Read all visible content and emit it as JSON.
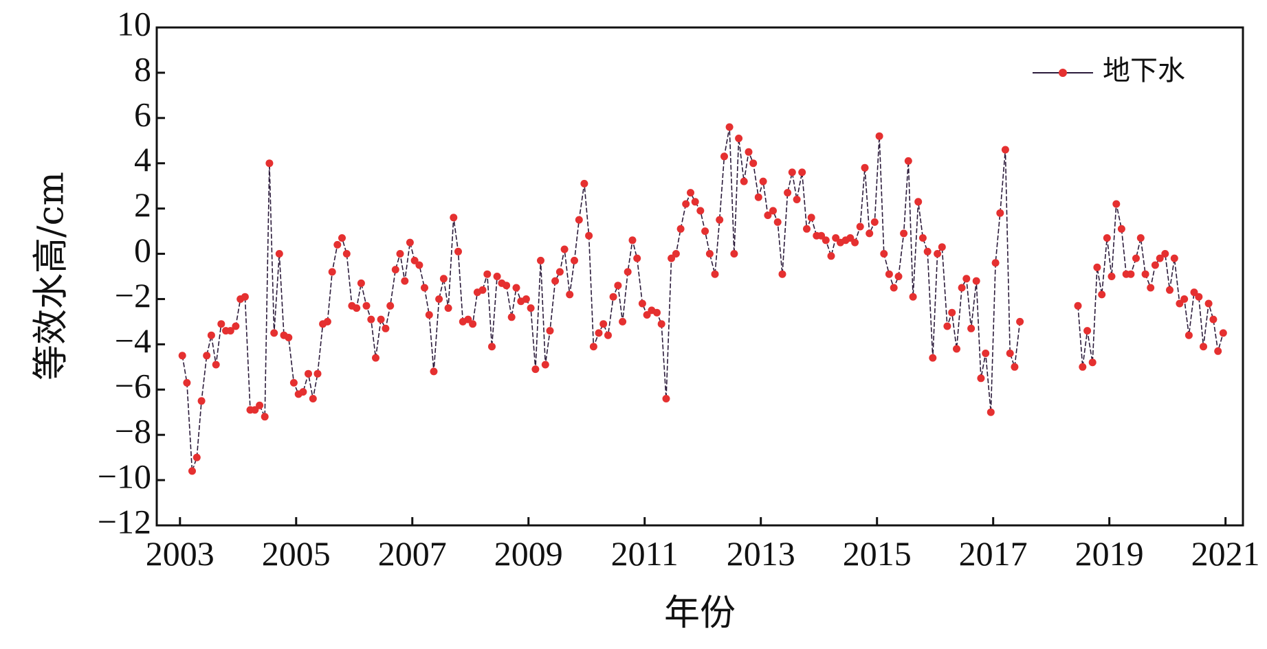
{
  "chart_data": {
    "type": "line",
    "xlabel": "年份",
    "ylabel": "等效水高/cm",
    "xlim": [
      2002.6,
      2021.3
    ],
    "ylim": [
      -12,
      10
    ],
    "x_ticks": [
      2003,
      2005,
      2007,
      2009,
      2011,
      2013,
      2015,
      2017,
      2019,
      2021
    ],
    "x_tick_labels": [
      "2003",
      "2005",
      "2007",
      "2009",
      "2011",
      "2013",
      "2015",
      "2017",
      "2019",
      "2021"
    ],
    "y_ticks": [
      -12,
      -10,
      -8,
      -6,
      -4,
      -2,
      0,
      2,
      4,
      6,
      8,
      10
    ],
    "y_tick_labels": [
      "−12",
      "−10",
      "−8",
      "−6",
      "−4",
      "−2",
      "0",
      "2",
      "4",
      "6",
      "8",
      "10"
    ],
    "legend_position": "top-right",
    "grid": false,
    "colors": {
      "line": "#2a1a3a",
      "marker": "#e53030",
      "axis": "#111111"
    },
    "series": [
      {
        "name": "地下水",
        "segments": [
          [
            [
              2003.04,
              -4.5
            ],
            [
              2003.12,
              -5.7
            ],
            [
              2003.21,
              -9.6
            ],
            [
              2003.29,
              -9.0
            ],
            [
              2003.37,
              -6.5
            ],
            [
              2003.46,
              -4.5
            ],
            [
              2003.54,
              -3.6
            ],
            [
              2003.62,
              -4.9
            ],
            [
              2003.71,
              -3.1
            ],
            [
              2003.79,
              -3.4
            ],
            [
              2003.87,
              -3.4
            ],
            [
              2003.96,
              -3.2
            ],
            [
              2004.04,
              -2.0
            ],
            [
              2004.12,
              -1.9
            ],
            [
              2004.21,
              -6.9
            ],
            [
              2004.29,
              -6.9
            ],
            [
              2004.37,
              -6.7
            ],
            [
              2004.46,
              -7.2
            ],
            [
              2004.54,
              4.0
            ],
            [
              2004.62,
              -3.5
            ],
            [
              2004.71,
              0.0
            ],
            [
              2004.79,
              -3.6
            ],
            [
              2004.87,
              -3.7
            ],
            [
              2004.96,
              -5.7
            ],
            [
              2005.04,
              -6.2
            ],
            [
              2005.12,
              -6.1
            ],
            [
              2005.21,
              -5.3
            ],
            [
              2005.29,
              -6.4
            ],
            [
              2005.37,
              -5.3
            ],
            [
              2005.46,
              -3.1
            ],
            [
              2005.54,
              -3.0
            ],
            [
              2005.62,
              -0.8
            ],
            [
              2005.71,
              0.4
            ],
            [
              2005.79,
              0.7
            ],
            [
              2005.87,
              0.0
            ],
            [
              2005.96,
              -2.3
            ],
            [
              2006.04,
              -2.4
            ],
            [
              2006.12,
              -1.3
            ],
            [
              2006.21,
              -2.3
            ],
            [
              2006.29,
              -2.9
            ],
            [
              2006.37,
              -4.6
            ],
            [
              2006.46,
              -2.9
            ],
            [
              2006.54,
              -3.3
            ],
            [
              2006.62,
              -2.3
            ],
            [
              2006.71,
              -0.7
            ],
            [
              2006.79,
              0.0
            ],
            [
              2006.87,
              -1.2
            ],
            [
              2006.96,
              0.5
            ],
            [
              2007.04,
              -0.3
            ],
            [
              2007.12,
              -0.5
            ],
            [
              2007.21,
              -1.5
            ],
            [
              2007.29,
              -2.7
            ],
            [
              2007.37,
              -5.2
            ],
            [
              2007.46,
              -2.0
            ],
            [
              2007.54,
              -1.1
            ],
            [
              2007.62,
              -2.4
            ],
            [
              2007.71,
              1.6
            ],
            [
              2007.79,
              0.1
            ],
            [
              2007.87,
              -3.0
            ],
            [
              2007.96,
              -2.9
            ],
            [
              2008.04,
              -3.1
            ],
            [
              2008.12,
              -1.7
            ],
            [
              2008.21,
              -1.6
            ],
            [
              2008.29,
              -0.9
            ],
            [
              2008.37,
              -4.1
            ],
            [
              2008.46,
              -1.0
            ],
            [
              2008.54,
              -1.3
            ],
            [
              2008.62,
              -1.4
            ],
            [
              2008.71,
              -2.8
            ],
            [
              2008.79,
              -1.5
            ],
            [
              2008.87,
              -2.1
            ],
            [
              2008.96,
              -2.0
            ],
            [
              2009.04,
              -2.4
            ],
            [
              2009.12,
              -5.1
            ],
            [
              2009.21,
              -0.3
            ],
            [
              2009.29,
              -4.9
            ],
            [
              2009.37,
              -3.4
            ],
            [
              2009.46,
              -1.2
            ],
            [
              2009.54,
              -0.8
            ],
            [
              2009.62,
              0.2
            ],
            [
              2009.71,
              -1.8
            ],
            [
              2009.79,
              -0.3
            ],
            [
              2009.87,
              1.5
            ],
            [
              2009.96,
              3.1
            ],
            [
              2010.04,
              0.8
            ],
            [
              2010.12,
              -4.1
            ],
            [
              2010.21,
              -3.5
            ],
            [
              2010.29,
              -3.1
            ],
            [
              2010.37,
              -3.6
            ],
            [
              2010.46,
              -1.9
            ],
            [
              2010.54,
              -1.4
            ],
            [
              2010.62,
              -3.0
            ],
            [
              2010.71,
              -0.8
            ],
            [
              2010.79,
              0.6
            ],
            [
              2010.87,
              -0.2
            ],
            [
              2010.96,
              -2.2
            ],
            [
              2011.04,
              -2.7
            ],
            [
              2011.12,
              -2.5
            ],
            [
              2011.21,
              -2.6
            ],
            [
              2011.29,
              -3.1
            ],
            [
              2011.37,
              -6.4
            ],
            [
              2011.46,
              -0.2
            ],
            [
              2011.54,
              0.0
            ],
            [
              2011.62,
              1.1
            ],
            [
              2011.71,
              2.2
            ],
            [
              2011.79,
              2.7
            ],
            [
              2011.87,
              2.3
            ],
            [
              2011.96,
              1.9
            ],
            [
              2012.04,
              1.0
            ],
            [
              2012.12,
              0.0
            ],
            [
              2012.21,
              -0.9
            ],
            [
              2012.29,
              1.5
            ],
            [
              2012.37,
              4.3
            ],
            [
              2012.46,
              5.6
            ],
            [
              2012.54,
              0.0
            ],
            [
              2012.62,
              5.1
            ],
            [
              2012.71,
              3.2
            ],
            [
              2012.79,
              4.5
            ],
            [
              2012.87,
              4.0
            ],
            [
              2012.96,
              2.5
            ],
            [
              2013.04,
              3.2
            ],
            [
              2013.12,
              1.7
            ],
            [
              2013.21,
              1.9
            ],
            [
              2013.29,
              1.4
            ],
            [
              2013.37,
              -0.9
            ],
            [
              2013.46,
              2.7
            ],
            [
              2013.54,
              3.6
            ],
            [
              2013.62,
              2.4
            ],
            [
              2013.71,
              3.6
            ],
            [
              2013.79,
              1.1
            ],
            [
              2013.87,
              1.6
            ],
            [
              2013.96,
              0.8
            ],
            [
              2014.04,
              0.8
            ],
            [
              2014.12,
              0.6
            ],
            [
              2014.21,
              -0.1
            ],
            [
              2014.29,
              0.7
            ],
            [
              2014.37,
              0.5
            ],
            [
              2014.46,
              0.6
            ],
            [
              2014.54,
              0.7
            ],
            [
              2014.62,
              0.5
            ],
            [
              2014.71,
              1.2
            ],
            [
              2014.79,
              3.8
            ],
            [
              2014.87,
              0.9
            ],
            [
              2014.96,
              1.4
            ],
            [
              2015.04,
              5.2
            ],
            [
              2015.12,
              0.0
            ],
            [
              2015.21,
              -0.9
            ],
            [
              2015.29,
              -1.5
            ],
            [
              2015.37,
              -1.0
            ],
            [
              2015.46,
              0.9
            ],
            [
              2015.54,
              4.1
            ],
            [
              2015.62,
              -1.9
            ],
            [
              2015.71,
              2.3
            ],
            [
              2015.79,
              0.7
            ],
            [
              2015.87,
              0.1
            ],
            [
              2015.96,
              -4.6
            ],
            [
              2016.04,
              0.0
            ],
            [
              2016.12,
              0.3
            ],
            [
              2016.21,
              -3.2
            ],
            [
              2016.29,
              -2.6
            ],
            [
              2016.37,
              -4.2
            ],
            [
              2016.46,
              -1.5
            ],
            [
              2016.54,
              -1.1
            ],
            [
              2016.62,
              -3.3
            ],
            [
              2016.71,
              -1.2
            ],
            [
              2016.79,
              -5.5
            ],
            [
              2016.87,
              -4.4
            ],
            [
              2016.96,
              -7.0
            ],
            [
              2017.04,
              -0.4
            ],
            [
              2017.12,
              1.8
            ],
            [
              2017.21,
              4.6
            ],
            [
              2017.29,
              -4.4
            ],
            [
              2017.37,
              -5.0
            ],
            [
              2017.46,
              -3.0
            ]
          ],
          [
            [
              2018.46,
              -2.3
            ],
            [
              2018.54,
              -5.0
            ],
            [
              2018.62,
              -3.4
            ],
            [
              2018.71,
              -4.8
            ],
            [
              2018.79,
              -0.6
            ],
            [
              2018.87,
              -1.8
            ],
            [
              2018.96,
              0.7
            ],
            [
              2019.04,
              -1.0
            ],
            [
              2019.12,
              2.2
            ],
            [
              2019.21,
              1.1
            ],
            [
              2019.29,
              -0.9
            ],
            [
              2019.37,
              -0.9
            ],
            [
              2019.46,
              -0.2
            ],
            [
              2019.54,
              0.7
            ],
            [
              2019.62,
              -0.9
            ],
            [
              2019.71,
              -1.5
            ],
            [
              2019.79,
              -0.5
            ],
            [
              2019.87,
              -0.2
            ],
            [
              2019.96,
              0.0
            ],
            [
              2020.04,
              -1.6
            ],
            [
              2020.12,
              -0.2
            ],
            [
              2020.21,
              -2.2
            ],
            [
              2020.29,
              -2.0
            ],
            [
              2020.37,
              -3.6
            ],
            [
              2020.46,
              -1.7
            ],
            [
              2020.54,
              -1.9
            ],
            [
              2020.62,
              -4.1
            ],
            [
              2020.71,
              -2.2
            ],
            [
              2020.79,
              -2.9
            ],
            [
              2020.87,
              -4.3
            ],
            [
              2020.96,
              -3.5
            ]
          ]
        ]
      }
    ]
  }
}
